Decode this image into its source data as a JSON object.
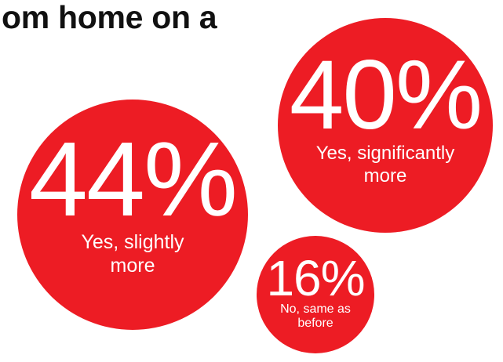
{
  "headline": "om home on a",
  "colors": {
    "bubble": "#ed1c24",
    "text_on_bubble": "#ffffff",
    "headline": "#111111"
  },
  "chart_data": {
    "type": "bubble",
    "title": "om home on a",
    "unit": "%",
    "categories": [
      "Yes, slightly more",
      "Yes, significantly more",
      "No, same as before"
    ],
    "values": [
      44,
      40,
      16
    ],
    "labels": [
      "44%",
      "40%",
      "16%"
    ],
    "legend": "none",
    "grid": false
  }
}
